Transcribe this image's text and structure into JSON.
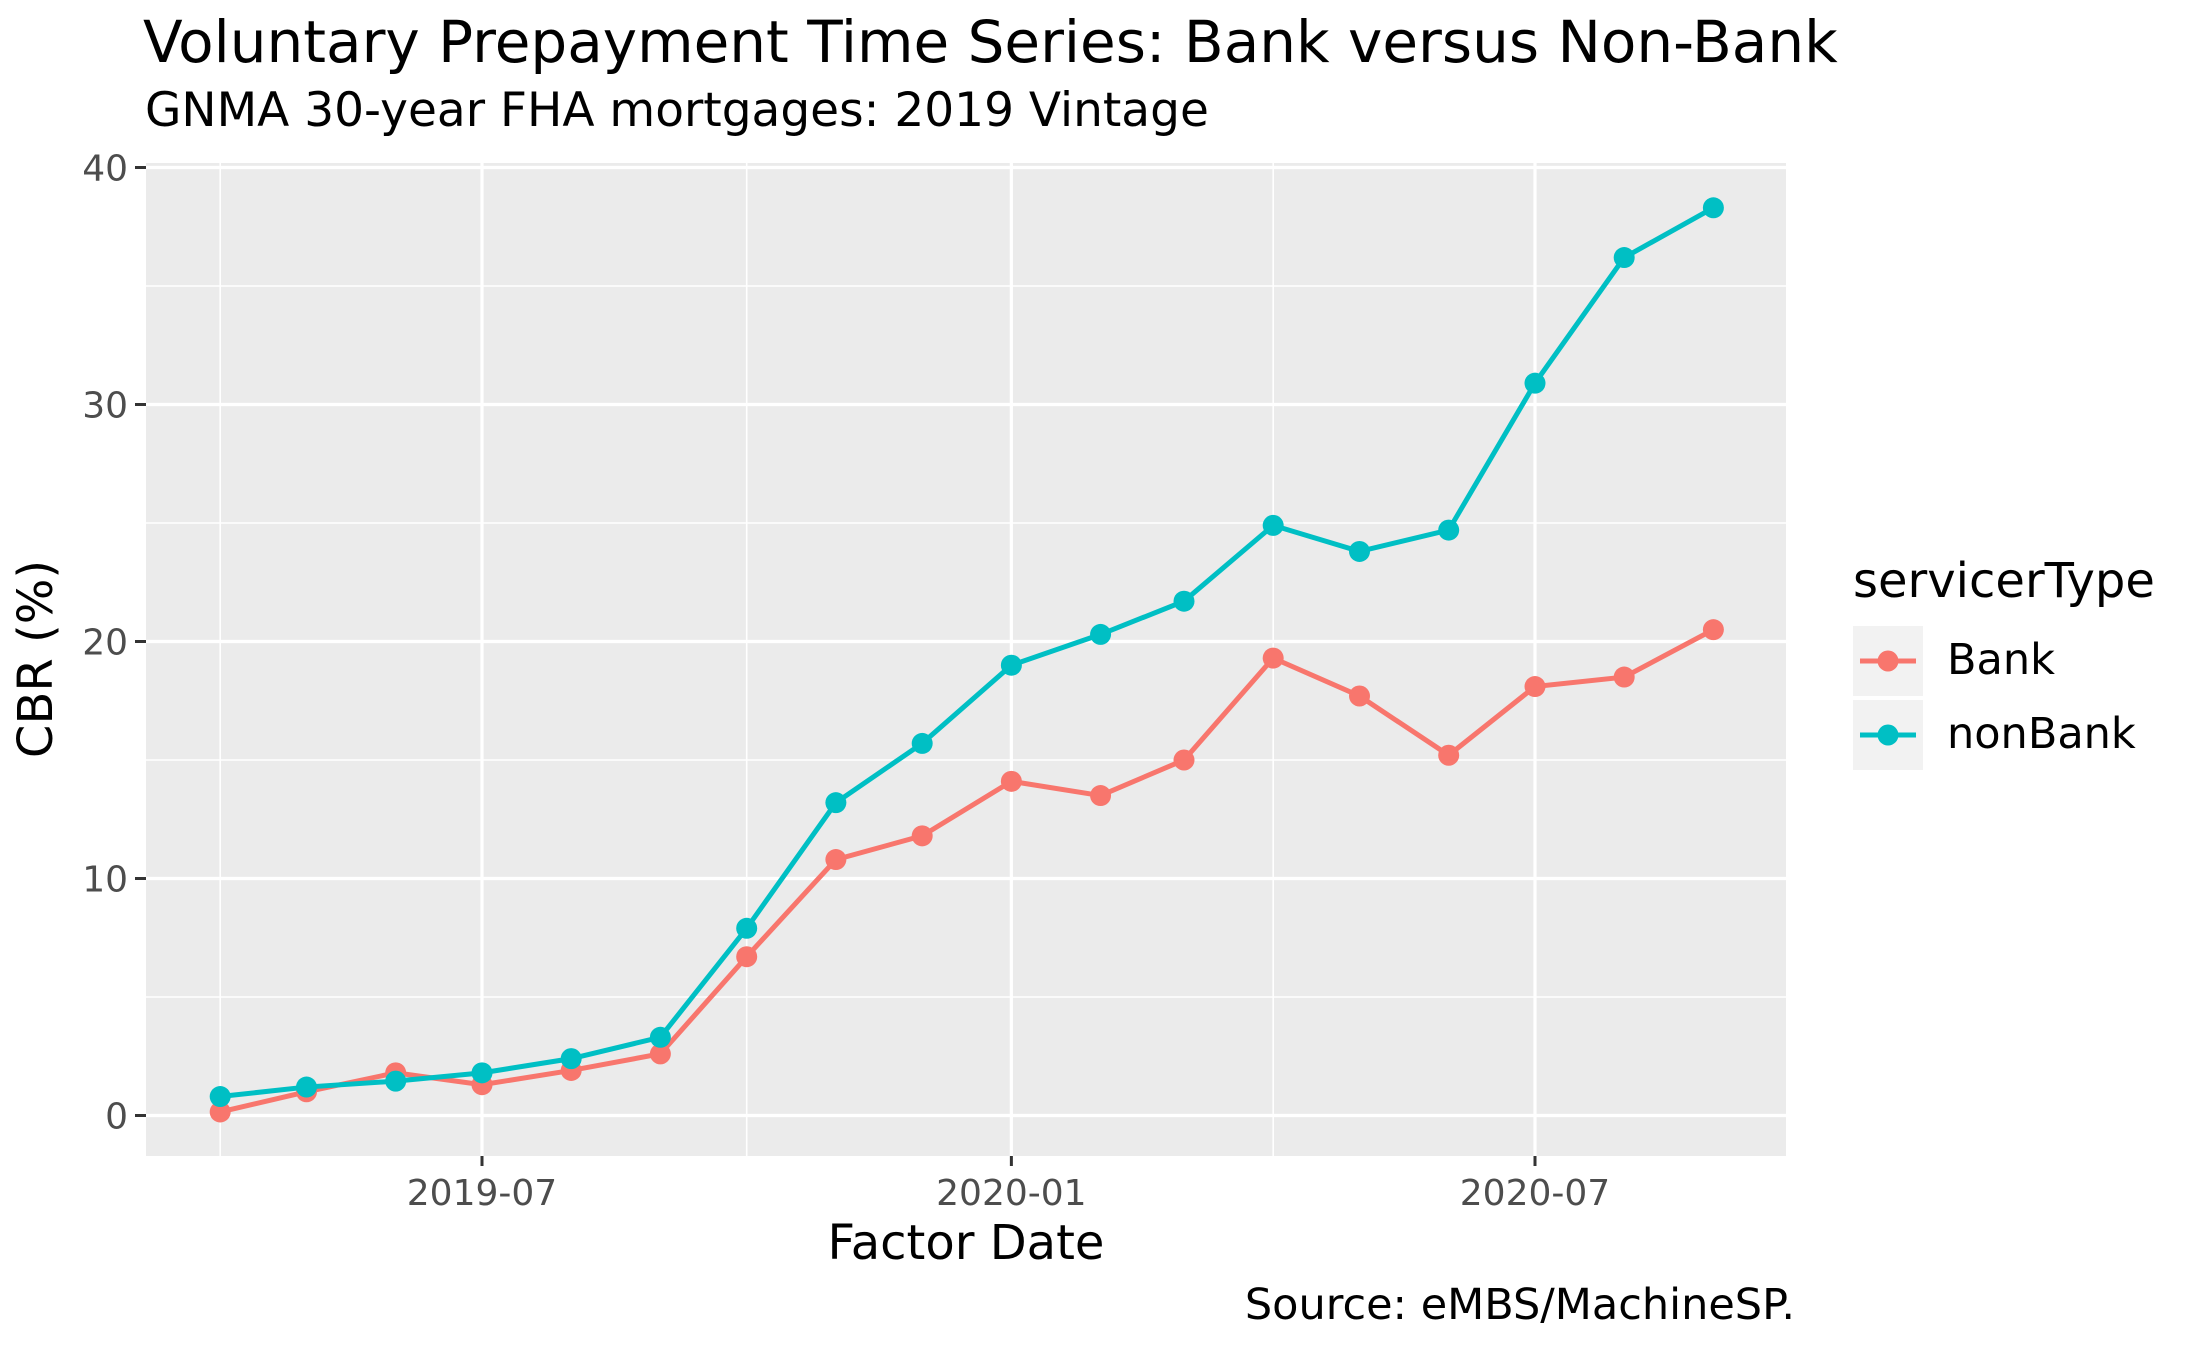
{
  "chart_data": {
    "type": "line",
    "title": "Voluntary Prepayment Time Series: Bank versus Non-Bank",
    "subtitle": "GNMA 30-year FHA mortgages: 2019 Vintage",
    "caption": "Source: eMBS/MachineSP.",
    "xlabel": "Factor Date",
    "ylabel": "CBR (%)",
    "legend_title": "servicerType",
    "legend_position": "right",
    "grid": true,
    "ylim": [
      0,
      40
    ],
    "x": [
      "2019-04-01",
      "2019-05-01",
      "2019-06-01",
      "2019-07-01",
      "2019-08-01",
      "2019-09-01",
      "2019-10-01",
      "2019-11-01",
      "2019-12-01",
      "2020-01-01",
      "2020-02-01",
      "2020-03-01",
      "2020-04-01",
      "2020-05-01",
      "2020-06-01",
      "2020-07-01",
      "2020-08-01",
      "2020-09-01"
    ],
    "series": [
      {
        "name": "Bank",
        "color": "#F8766D",
        "values": [
          0.15,
          1.0,
          1.8,
          1.3,
          1.9,
          2.6,
          6.7,
          10.8,
          11.8,
          14.1,
          13.5,
          15.0,
          19.3,
          17.7,
          15.2,
          18.1,
          18.5,
          20.5
        ]
      },
      {
        "name": "nonBank",
        "color": "#00BFC4",
        "values": [
          0.8,
          1.2,
          1.45,
          1.8,
          2.4,
          3.3,
          7.9,
          13.2,
          15.7,
          19.0,
          20.3,
          21.7,
          24.9,
          23.8,
          24.7,
          30.9,
          36.2,
          38.3
        ]
      }
    ],
    "y_axis": {
      "major_ticks": [
        0,
        10,
        20,
        30,
        40
      ],
      "minor_ticks": [
        5,
        15,
        25,
        35
      ]
    },
    "x_axis": {
      "major_ticks": [
        {
          "date": "2019-07-01",
          "label": "2019-07"
        },
        {
          "date": "2020-01-01",
          "label": "2020-01"
        },
        {
          "date": "2020-07-01",
          "label": "2020-07"
        }
      ],
      "minor_ticks": [
        "2019-04-01",
        "2019-10-01",
        "2020-04-01"
      ]
    }
  },
  "style": {
    "panel_bg": "#EBEBEB",
    "grid_color": "#FFFFFF",
    "axis_text_color": "#4D4D4D",
    "tick_mark_color": "#333333",
    "legend_key_bg": "#F2F2F2"
  }
}
